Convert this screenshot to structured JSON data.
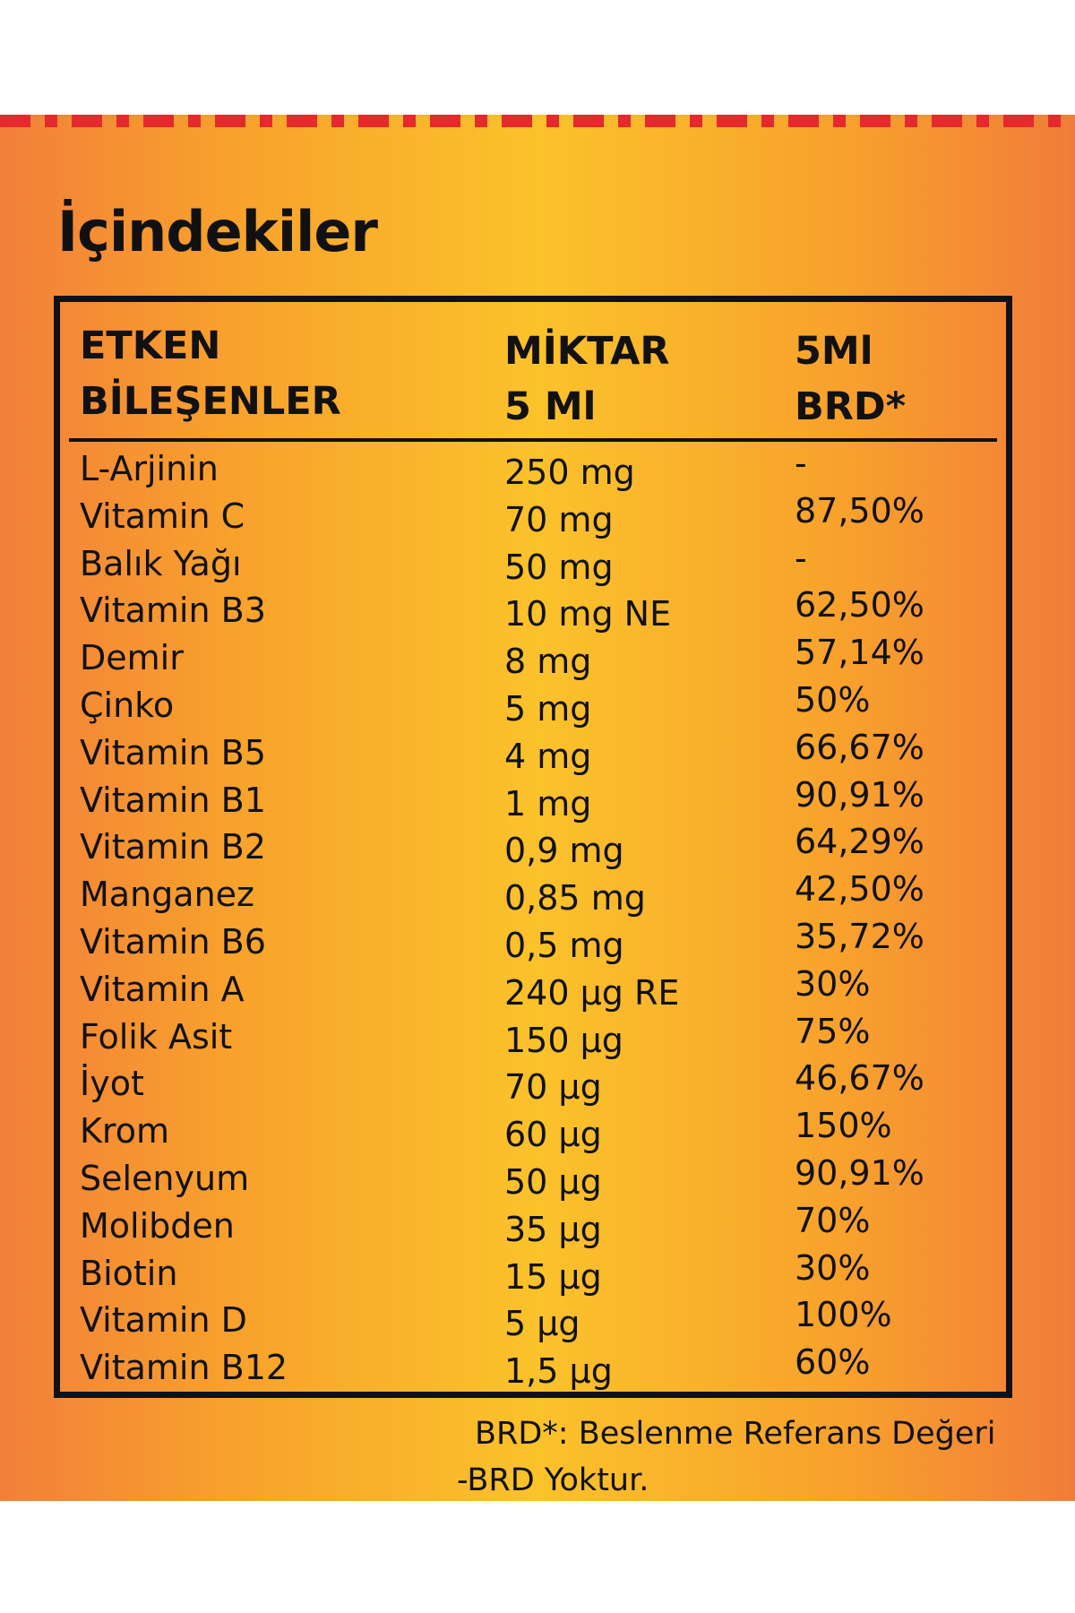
{
  "title": "İçindekiler",
  "table": {
    "headers": [
      "ETKEN\nBİLEŞENLER",
      "MİKTAR\n 5 Ml",
      "5Ml\nBRD*"
    ],
    "rows": [
      [
        "L-Arjinin",
        "250 mg",
        "-"
      ],
      [
        "Vitamin C",
        "70 mg",
        "87,50%"
      ],
      [
        "Balık Yağı",
        "50 mg",
        "-"
      ],
      [
        "Vitamin B3",
        "10 mg NE",
        "62,50%"
      ],
      [
        "Demir",
        "8 mg",
        "57,14%"
      ],
      [
        "Çinko",
        "5 mg",
        "50%"
      ],
      [
        "Vitamin B5",
        "4 mg",
        "66,67%"
      ],
      [
        "Vitamin B1",
        "1 mg",
        "90,91%"
      ],
      [
        "Vitamin B2",
        "0,9 mg",
        "64,29%"
      ],
      [
        "Manganez",
        "0,85 mg",
        "42,50%"
      ],
      [
        "Vitamin B6",
        "0,5 mg",
        "35,72%"
      ],
      [
        "Vitamin A",
        "240 µg RE",
        "30%"
      ],
      [
        "Folik Asit",
        "150 µg",
        "75%"
      ],
      [
        "İyot",
        "70 µg",
        "46,67%"
      ],
      [
        "Krom",
        "60 µg",
        "150%"
      ],
      [
        "Selenyum",
        "50 µg",
        "90,91%"
      ],
      [
        "Molibden",
        "35 µg",
        "70%"
      ],
      [
        "Biotin",
        "15 µg",
        "30%"
      ],
      [
        "Vitamin D",
        "5 µg",
        "100%"
      ],
      [
        "Vitamin B12",
        "1,5 µg",
        "60%"
      ]
    ]
  },
  "footnotes": [
    "BRD*: Beslenme Referans Değeri",
    "-BRD Yoktur."
  ],
  "colors": {
    "accent_dash": "#e42a2d",
    "gradient_edge": "#f27f3a",
    "gradient_center": "#fbc22b",
    "text": "#111111"
  }
}
